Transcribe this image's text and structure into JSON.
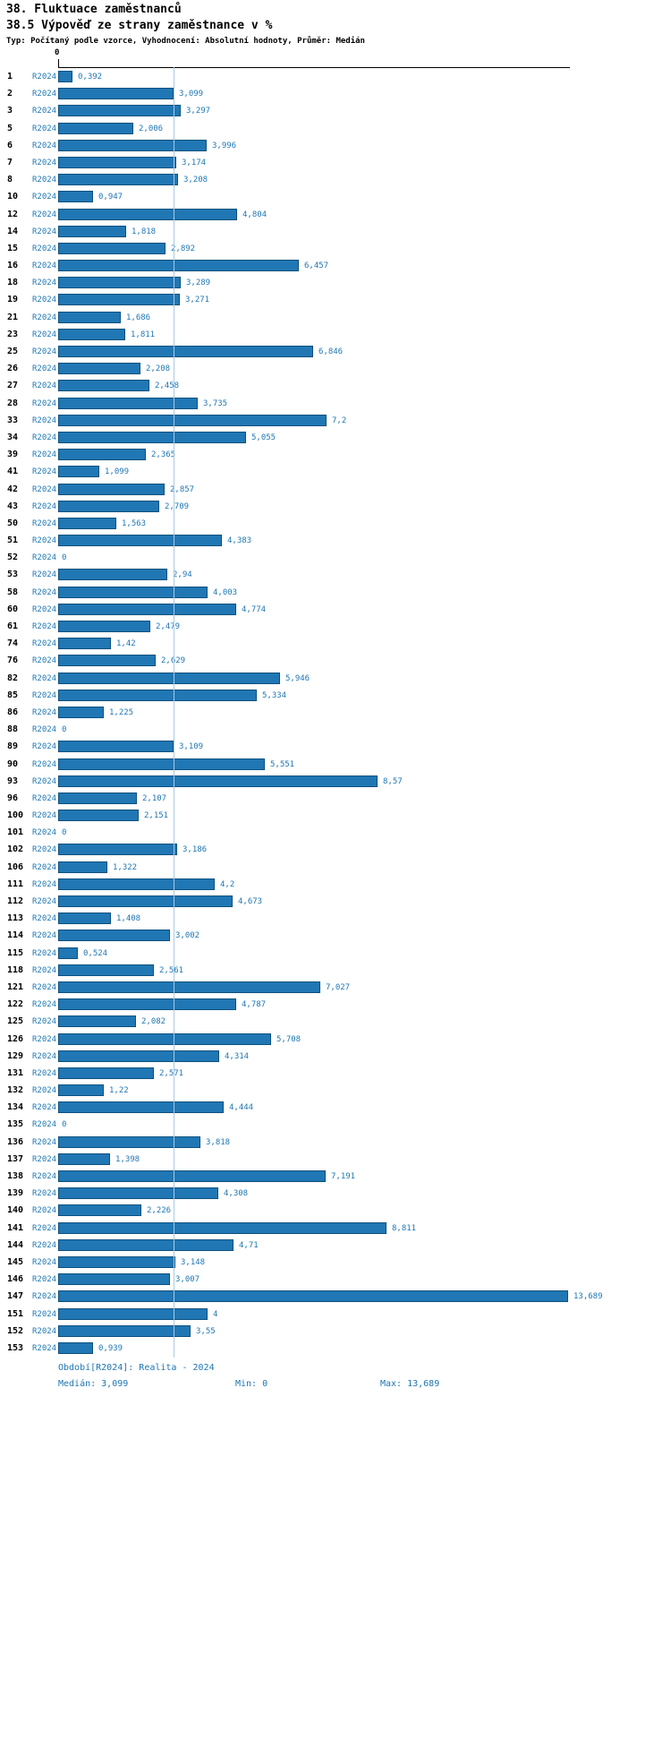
{
  "title": "38. Fluktuace zaměstnanců",
  "subtitle": "38.5 Výpověď ze strany zaměstnance v %",
  "meta": "Typ: Počítaný podle vzorce, Vyhodnocení: Absolutní hodnoty, Průměr: Medián",
  "axis": {
    "zero_label": "0"
  },
  "footer": {
    "period": "Období[R2024]: Realita - 2024",
    "median": "Medián: 3,099",
    "min": "Min: 0",
    "max": "Max: 13,689"
  },
  "colors": {
    "bar_fill": "#2077b4",
    "bar_border": "#0f517e",
    "label_blue": "#1f77b4",
    "median_line": "#a9cbe2",
    "text": "#000000"
  },
  "chart_data": {
    "type": "bar",
    "orientation": "horizontal",
    "series_label": "R2024",
    "xlim": [
      0,
      13.689
    ],
    "median_value": 3.099,
    "min_value": 0,
    "max_value": 13.689,
    "grid": false,
    "rows": [
      {
        "num": "1",
        "value": 0.392,
        "label": "0,392"
      },
      {
        "num": "2",
        "value": 3.099,
        "label": "3,099"
      },
      {
        "num": "3",
        "value": 3.297,
        "label": "3,297"
      },
      {
        "num": "5",
        "value": 2.006,
        "label": "2,006"
      },
      {
        "num": "6",
        "value": 3.996,
        "label": "3,996"
      },
      {
        "num": "7",
        "value": 3.174,
        "label": "3,174"
      },
      {
        "num": "8",
        "value": 3.208,
        "label": "3,208"
      },
      {
        "num": "10",
        "value": 0.947,
        "label": "0,947"
      },
      {
        "num": "12",
        "value": 4.804,
        "label": "4,804"
      },
      {
        "num": "14",
        "value": 1.818,
        "label": "1,818"
      },
      {
        "num": "15",
        "value": 2.892,
        "label": "2,892"
      },
      {
        "num": "16",
        "value": 6.457,
        "label": "6,457"
      },
      {
        "num": "18",
        "value": 3.289,
        "label": "3,289"
      },
      {
        "num": "19",
        "value": 3.271,
        "label": "3,271"
      },
      {
        "num": "21",
        "value": 1.686,
        "label": "1,686"
      },
      {
        "num": "23",
        "value": 1.811,
        "label": "1,811"
      },
      {
        "num": "25",
        "value": 6.846,
        "label": "6,846"
      },
      {
        "num": "26",
        "value": 2.208,
        "label": "2,208"
      },
      {
        "num": "27",
        "value": 2.458,
        "label": "2,458"
      },
      {
        "num": "28",
        "value": 3.735,
        "label": "3,735"
      },
      {
        "num": "33",
        "value": 7.2,
        "label": "7,2"
      },
      {
        "num": "34",
        "value": 5.055,
        "label": "5,055"
      },
      {
        "num": "39",
        "value": 2.365,
        "label": "2,365"
      },
      {
        "num": "41",
        "value": 1.099,
        "label": "1,099"
      },
      {
        "num": "42",
        "value": 2.857,
        "label": "2,857"
      },
      {
        "num": "43",
        "value": 2.709,
        "label": "2,709"
      },
      {
        "num": "50",
        "value": 1.563,
        "label": "1,563"
      },
      {
        "num": "51",
        "value": 4.383,
        "label": "4,383"
      },
      {
        "num": "52",
        "value": 0,
        "label": "0"
      },
      {
        "num": "53",
        "value": 2.94,
        "label": "2,94"
      },
      {
        "num": "58",
        "value": 4.003,
        "label": "4,003"
      },
      {
        "num": "60",
        "value": 4.774,
        "label": "4,774"
      },
      {
        "num": "61",
        "value": 2.479,
        "label": "2,479"
      },
      {
        "num": "74",
        "value": 1.42,
        "label": "1,42"
      },
      {
        "num": "76",
        "value": 2.629,
        "label": "2,629"
      },
      {
        "num": "82",
        "value": 5.946,
        "label": "5,946"
      },
      {
        "num": "85",
        "value": 5.334,
        "label": "5,334"
      },
      {
        "num": "86",
        "value": 1.225,
        "label": "1,225"
      },
      {
        "num": "88",
        "value": 0,
        "label": "0"
      },
      {
        "num": "89",
        "value": 3.109,
        "label": "3,109"
      },
      {
        "num": "90",
        "value": 5.551,
        "label": "5,551"
      },
      {
        "num": "93",
        "value": 8.57,
        "label": "8,57"
      },
      {
        "num": "96",
        "value": 2.107,
        "label": "2,107"
      },
      {
        "num": "100",
        "value": 2.151,
        "label": "2,151"
      },
      {
        "num": "101",
        "value": 0,
        "label": "0"
      },
      {
        "num": "102",
        "value": 3.186,
        "label": "3,186"
      },
      {
        "num": "106",
        "value": 1.322,
        "label": "1,322"
      },
      {
        "num": "111",
        "value": 4.2,
        "label": "4,2"
      },
      {
        "num": "112",
        "value": 4.673,
        "label": "4,673"
      },
      {
        "num": "113",
        "value": 1.408,
        "label": "1,408"
      },
      {
        "num": "114",
        "value": 3.002,
        "label": "3,002"
      },
      {
        "num": "115",
        "value": 0.524,
        "label": "0,524"
      },
      {
        "num": "118",
        "value": 2.561,
        "label": "2,561"
      },
      {
        "num": "121",
        "value": 7.027,
        "label": "7,027"
      },
      {
        "num": "122",
        "value": 4.787,
        "label": "4,787"
      },
      {
        "num": "125",
        "value": 2.082,
        "label": "2,082"
      },
      {
        "num": "126",
        "value": 5.708,
        "label": "5,708"
      },
      {
        "num": "129",
        "value": 4.314,
        "label": "4,314"
      },
      {
        "num": "131",
        "value": 2.571,
        "label": "2,571"
      },
      {
        "num": "132",
        "value": 1.22,
        "label": "1,22"
      },
      {
        "num": "134",
        "value": 4.444,
        "label": "4,444"
      },
      {
        "num": "135",
        "value": 0,
        "label": "0"
      },
      {
        "num": "136",
        "value": 3.818,
        "label": "3,818"
      },
      {
        "num": "137",
        "value": 1.398,
        "label": "1,398"
      },
      {
        "num": "138",
        "value": 7.191,
        "label": "7,191"
      },
      {
        "num": "139",
        "value": 4.308,
        "label": "4,308"
      },
      {
        "num": "140",
        "value": 2.226,
        "label": "2,226"
      },
      {
        "num": "141",
        "value": 8.811,
        "label": "8,811"
      },
      {
        "num": "144",
        "value": 4.71,
        "label": "4,71"
      },
      {
        "num": "145",
        "value": 3.148,
        "label": "3,148"
      },
      {
        "num": "146",
        "value": 3.007,
        "label": "3,007"
      },
      {
        "num": "147",
        "value": 13.689,
        "label": "13,689"
      },
      {
        "num": "151",
        "value": 4,
        "label": "4"
      },
      {
        "num": "152",
        "value": 3.55,
        "label": "3,55"
      },
      {
        "num": "153",
        "value": 0.939,
        "label": "0,939"
      }
    ]
  }
}
